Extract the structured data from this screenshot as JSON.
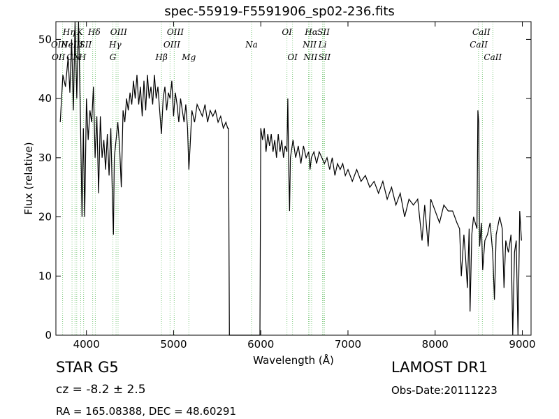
{
  "header": {
    "title": "spec-55919-F5591906_sp02-236.fits"
  },
  "info": {
    "object_class": "STAR   G5",
    "redshift": "cz = -8.2  ± 2.5",
    "coords": "RA = 165.08388, DEC = 48.60291",
    "survey": "LAMOST DR1",
    "obs_date": "Obs-Date:20111223"
  },
  "chart_data": {
    "type": "line",
    "title": "spec-55919-F5591906_sp02-236.fits",
    "xlabel": "Wavelength (Å)",
    "ylabel": "Flux (relative)",
    "xlim": [
      3650,
      9100
    ],
    "ylim": [
      0,
      53
    ],
    "xticks": [
      4000,
      5000,
      6000,
      7000,
      8000,
      9000
    ],
    "yticks": [
      0,
      10,
      20,
      30,
      40,
      50
    ],
    "grid": false,
    "line_color": "#000000",
    "marker_color": "#7fc97f",
    "series": [
      {
        "values": [
          [
            3700,
            36
          ],
          [
            3730,
            44
          ],
          [
            3760,
            42
          ],
          [
            3790,
            47
          ],
          [
            3810,
            41
          ],
          [
            3830,
            50
          ],
          [
            3850,
            38
          ],
          [
            3870,
            53
          ],
          [
            3890,
            40
          ],
          [
            3910,
            53
          ],
          [
            3930,
            38
          ],
          [
            3950,
            20
          ],
          [
            3965,
            35
          ],
          [
            3980,
            20
          ],
          [
            4000,
            40
          ],
          [
            4020,
            33
          ],
          [
            4040,
            38
          ],
          [
            4060,
            36
          ],
          [
            4080,
            42
          ],
          [
            4100,
            30
          ],
          [
            4120,
            37
          ],
          [
            4140,
            24
          ],
          [
            4160,
            37
          ],
          [
            4180,
            30
          ],
          [
            4200,
            33
          ],
          [
            4220,
            28
          ],
          [
            4240,
            34
          ],
          [
            4260,
            27
          ],
          [
            4280,
            35
          ],
          [
            4300,
            22
          ],
          [
            4310,
            17
          ],
          [
            4320,
            30
          ],
          [
            4340,
            33
          ],
          [
            4360,
            36
          ],
          [
            4380,
            32
          ],
          [
            4400,
            25
          ],
          [
            4420,
            38
          ],
          [
            4440,
            36
          ],
          [
            4460,
            40
          ],
          [
            4480,
            38
          ],
          [
            4500,
            41
          ],
          [
            4520,
            39
          ],
          [
            4540,
            43
          ],
          [
            4560,
            40
          ],
          [
            4580,
            44
          ],
          [
            4600,
            39
          ],
          [
            4620,
            42
          ],
          [
            4640,
            37
          ],
          [
            4660,
            43
          ],
          [
            4680,
            38
          ],
          [
            4700,
            44
          ],
          [
            4720,
            40
          ],
          [
            4740,
            42
          ],
          [
            4760,
            39
          ],
          [
            4780,
            44
          ],
          [
            4800,
            40
          ],
          [
            4820,
            42
          ],
          [
            4840,
            38
          ],
          [
            4860,
            34
          ],
          [
            4880,
            40
          ],
          [
            4900,
            42
          ],
          [
            4920,
            38
          ],
          [
            4940,
            41
          ],
          [
            4960,
            40
          ],
          [
            4980,
            43
          ],
          [
            5000,
            37
          ],
          [
            5020,
            41
          ],
          [
            5040,
            39
          ],
          [
            5060,
            36
          ],
          [
            5080,
            40
          ],
          [
            5100,
            38
          ],
          [
            5120,
            36
          ],
          [
            5140,
            39
          ],
          [
            5160,
            35
          ],
          [
            5175,
            28
          ],
          [
            5190,
            32
          ],
          [
            5210,
            38
          ],
          [
            5240,
            36
          ],
          [
            5270,
            39
          ],
          [
            5300,
            38
          ],
          [
            5330,
            37
          ],
          [
            5360,
            39
          ],
          [
            5390,
            36
          ],
          [
            5420,
            38
          ],
          [
            5450,
            37
          ],
          [
            5480,
            38
          ],
          [
            5510,
            36
          ],
          [
            5540,
            37
          ],
          [
            5570,
            35
          ],
          [
            5600,
            36
          ],
          [
            5620,
            35
          ],
          [
            5630,
            35
          ],
          [
            5640,
            0
          ],
          [
            5700,
            0
          ],
          [
            5800,
            0
          ],
          [
            5900,
            0
          ],
          [
            5990,
            0
          ],
          [
            6000,
            35
          ],
          [
            6020,
            33
          ],
          [
            6040,
            35
          ],
          [
            6060,
            31
          ],
          [
            6080,
            34
          ],
          [
            6100,
            32
          ],
          [
            6120,
            34
          ],
          [
            6140,
            31
          ],
          [
            6160,
            33
          ],
          [
            6180,
            30
          ],
          [
            6200,
            34
          ],
          [
            6220,
            31
          ],
          [
            6240,
            33
          ],
          [
            6260,
            30
          ],
          [
            6280,
            32
          ],
          [
            6300,
            31
          ],
          [
            6310,
            40
          ],
          [
            6320,
            29
          ],
          [
            6330,
            21
          ],
          [
            6340,
            30
          ],
          [
            6370,
            33
          ],
          [
            6400,
            30
          ],
          [
            6430,
            32
          ],
          [
            6460,
            29
          ],
          [
            6490,
            32
          ],
          [
            6520,
            30
          ],
          [
            6550,
            31
          ],
          [
            6565,
            28
          ],
          [
            6580,
            30
          ],
          [
            6610,
            31
          ],
          [
            6640,
            29
          ],
          [
            6670,
            31
          ],
          [
            6700,
            30
          ],
          [
            6730,
            29
          ],
          [
            6760,
            30
          ],
          [
            6790,
            28
          ],
          [
            6820,
            30
          ],
          [
            6850,
            27
          ],
          [
            6880,
            29
          ],
          [
            6910,
            28
          ],
          [
            6940,
            29
          ],
          [
            6970,
            27
          ],
          [
            7000,
            28
          ],
          [
            7050,
            26
          ],
          [
            7100,
            28
          ],
          [
            7150,
            26
          ],
          [
            7200,
            27
          ],
          [
            7250,
            25
          ],
          [
            7300,
            26
          ],
          [
            7350,
            24
          ],
          [
            7400,
            26
          ],
          [
            7450,
            23
          ],
          [
            7500,
            25
          ],
          [
            7550,
            22
          ],
          [
            7600,
            24
          ],
          [
            7650,
            20
          ],
          [
            7700,
            23
          ],
          [
            7750,
            22
          ],
          [
            7800,
            23
          ],
          [
            7850,
            16
          ],
          [
            7880,
            22
          ],
          [
            7920,
            15
          ],
          [
            7950,
            23
          ],
          [
            8000,
            21
          ],
          [
            8050,
            19
          ],
          [
            8100,
            22
          ],
          [
            8150,
            21
          ],
          [
            8200,
            21
          ],
          [
            8250,
            19
          ],
          [
            8280,
            18
          ],
          [
            8300,
            10
          ],
          [
            8330,
            17
          ],
          [
            8350,
            13
          ],
          [
            8370,
            8
          ],
          [
            8390,
            18
          ],
          [
            8400,
            4
          ],
          [
            8420,
            17
          ],
          [
            8440,
            20
          ],
          [
            8460,
            19
          ],
          [
            8480,
            18
          ],
          [
            8490,
            38
          ],
          [
            8500,
            36
          ],
          [
            8510,
            15
          ],
          [
            8530,
            19
          ],
          [
            8545,
            11
          ],
          [
            8570,
            16
          ],
          [
            8600,
            17
          ],
          [
            8630,
            19
          ],
          [
            8660,
            14
          ],
          [
            8680,
            6
          ],
          [
            8700,
            17
          ],
          [
            8740,
            20
          ],
          [
            8770,
            18
          ],
          [
            8790,
            8
          ],
          [
            8810,
            16
          ],
          [
            8840,
            14
          ],
          [
            8870,
            17
          ],
          [
            8890,
            0
          ],
          [
            8910,
            14
          ],
          [
            8930,
            16
          ],
          [
            8950,
            0
          ],
          [
            8970,
            21
          ],
          [
            8990,
            16
          ]
        ]
      }
    ],
    "spectral_lines": [
      {
        "label": "OII",
        "wavelength": 3727
      },
      {
        "label": "Hη",
        "wavelength": 3835
      },
      {
        "label": "CN",
        "wavelength": 3889
      },
      {
        "label": "NeIII",
        "wavelength": 3869
      },
      {
        "label": "K",
        "wavelength": 3934
      },
      {
        "label": "H",
        "wavelength": 3968
      },
      {
        "label": "SII",
        "wavelength": 4072
      },
      {
        "label": "Hδ",
        "wavelength": 4102
      },
      {
        "label": "G",
        "wavelength": 4304
      },
      {
        "label": "Hγ",
        "wavelength": 4340
      },
      {
        "label": "OIII",
        "wavelength": 4363
      },
      {
        "label": "Hβ",
        "wavelength": 4861
      },
      {
        "label": "OIII",
        "wavelength": 4959
      },
      {
        "label": "OIII",
        "wavelength": 5007
      },
      {
        "label": "Mg",
        "wavelength": 5175
      },
      {
        "label": "Na",
        "wavelength": 5894
      },
      {
        "label": "OI",
        "wavelength": 6300
      },
      {
        "label": "OI",
        "wavelength": 6364
      },
      {
        "label": "NII",
        "wavelength": 6548
      },
      {
        "label": "Hα",
        "wavelength": 6563
      },
      {
        "label": "NII",
        "wavelength": 6583
      },
      {
        "label": "Li",
        "wavelength": 6708
      },
      {
        "label": "SII",
        "wavelength": 6716
      },
      {
        "label": "SII",
        "wavelength": 6731
      },
      {
        "label": "CaII",
        "wavelength": 8498
      },
      {
        "label": "CaII",
        "wavelength": 8542
      },
      {
        "label": "CaII",
        "wavelength": 8662
      }
    ],
    "line_labels": [
      {
        "text": "Hη",
        "wavelength": 3800,
        "row": 1
      },
      {
        "text": "K",
        "wavelength": 3925,
        "row": 1
      },
      {
        "text": "Hδ",
        "wavelength": 4090,
        "row": 1
      },
      {
        "text": "OIII",
        "wavelength": 4370,
        "row": 1
      },
      {
        "text": "OIII",
        "wavelength": 5020,
        "row": 1
      },
      {
        "text": "OI",
        "wavelength": 6300,
        "row": 1
      },
      {
        "text": "Hα",
        "wavelength": 6580,
        "row": 1
      },
      {
        "text": "SII",
        "wavelength": 6720,
        "row": 1
      },
      {
        "text": "CaII",
        "wavelength": 8530,
        "row": 1
      },
      {
        "text": "OIII",
        "wavelength": 3690,
        "row": 2
      },
      {
        "text": "NeIII",
        "wavelength": 3835,
        "row": 2
      },
      {
        "text": "SII",
        "wavelength": 3990,
        "row": 2
      },
      {
        "text": "Hγ",
        "wavelength": 4330,
        "row": 2
      },
      {
        "text": "OIII",
        "wavelength": 4980,
        "row": 2
      },
      {
        "text": "Na",
        "wavelength": 5894,
        "row": 2
      },
      {
        "text": "NII",
        "wavelength": 6560,
        "row": 2
      },
      {
        "text": "Li",
        "wavelength": 6708,
        "row": 2
      },
      {
        "text": "CaII",
        "wavelength": 8500,
        "row": 2
      },
      {
        "text": "OII",
        "wavelength": 3680,
        "row": 3
      },
      {
        "text": "CN",
        "wavelength": 3850,
        "row": 3
      },
      {
        "text": "H",
        "wavelength": 3955,
        "row": 3
      },
      {
        "text": "G",
        "wavelength": 4304,
        "row": 3
      },
      {
        "text": "Hβ",
        "wavelength": 4861,
        "row": 3
      },
      {
        "text": "Mg",
        "wavelength": 5175,
        "row": 3
      },
      {
        "text": "OI",
        "wavelength": 6364,
        "row": 3
      },
      {
        "text": "NII",
        "wavelength": 6570,
        "row": 3
      },
      {
        "text": "SII",
        "wavelength": 6731,
        "row": 3
      },
      {
        "text": "CaII",
        "wavelength": 8662,
        "row": 3
      }
    ]
  }
}
